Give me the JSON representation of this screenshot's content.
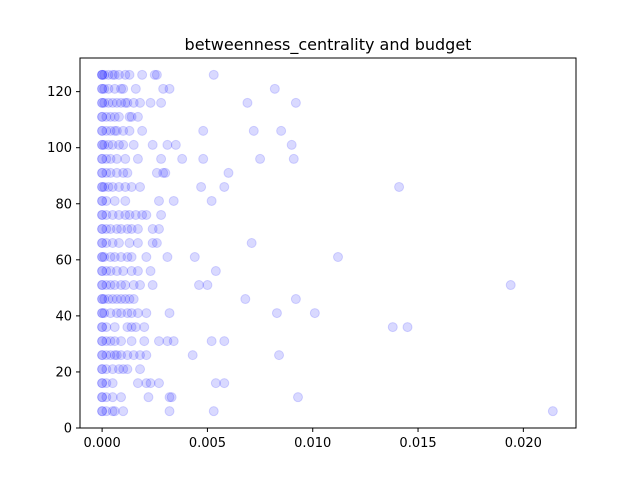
{
  "chart_data": {
    "type": "scatter",
    "title": "betweenness_centrality and budget",
    "xlabel": "",
    "ylabel": "",
    "xlim": [
      -0.00105,
      0.0225
    ],
    "ylim": [
      0,
      132
    ],
    "x_ticks": [
      0.0,
      0.005,
      0.01,
      0.015,
      0.02
    ],
    "x_tick_labels": [
      "0.000",
      "0.005",
      "0.010",
      "0.015",
      "0.020"
    ],
    "y_ticks": [
      0,
      20,
      40,
      60,
      80,
      100,
      120
    ],
    "y_tick_labels": [
      "0",
      "20",
      "40",
      "60",
      "80",
      "100",
      "120"
    ],
    "grid": false,
    "legend": false,
    "marker_color": "#0000ff",
    "marker_alpha": 0.15,
    "points": [
      [
        0.0,
        126
      ],
      [
        0.0,
        126
      ],
      [
        0.0,
        126
      ],
      [
        0.0001,
        126
      ],
      [
        0.0003,
        126
      ],
      [
        0.0005,
        126
      ],
      [
        0.0006,
        126
      ],
      [
        0.0008,
        126
      ],
      [
        0.0011,
        126
      ],
      [
        0.0013,
        126
      ],
      [
        0.0019,
        126
      ],
      [
        0.0025,
        126
      ],
      [
        0.0026,
        126
      ],
      [
        0.0053,
        126
      ],
      [
        0.0,
        121
      ],
      [
        0.0,
        121
      ],
      [
        0.0001,
        121
      ],
      [
        0.0003,
        121
      ],
      [
        0.0006,
        121
      ],
      [
        0.0009,
        121
      ],
      [
        0.001,
        121
      ],
      [
        0.0016,
        121
      ],
      [
        0.0029,
        121
      ],
      [
        0.0032,
        121
      ],
      [
        0.0082,
        121
      ],
      [
        0.0,
        116
      ],
      [
        0.0,
        116
      ],
      [
        0.0001,
        116
      ],
      [
        0.0003,
        116
      ],
      [
        0.0005,
        116
      ],
      [
        0.0007,
        116
      ],
      [
        0.0009,
        116
      ],
      [
        0.0011,
        116
      ],
      [
        0.0012,
        116
      ],
      [
        0.0015,
        116
      ],
      [
        0.0018,
        116
      ],
      [
        0.0023,
        116
      ],
      [
        0.0028,
        116
      ],
      [
        0.0069,
        116
      ],
      [
        0.0092,
        116
      ],
      [
        0.0,
        111
      ],
      [
        0.0,
        111
      ],
      [
        0.0002,
        111
      ],
      [
        0.0004,
        111
      ],
      [
        0.0006,
        111
      ],
      [
        0.0008,
        111
      ],
      [
        0.0013,
        111
      ],
      [
        0.0014,
        111
      ],
      [
        0.0017,
        111
      ],
      [
        0.0,
        106
      ],
      [
        0.0,
        106
      ],
      [
        0.0002,
        106
      ],
      [
        0.0004,
        106
      ],
      [
        0.0006,
        106
      ],
      [
        0.0007,
        106
      ],
      [
        0.001,
        106
      ],
      [
        0.0013,
        106
      ],
      [
        0.0019,
        106
      ],
      [
        0.0048,
        106
      ],
      [
        0.0072,
        106
      ],
      [
        0.0085,
        106
      ],
      [
        0.0,
        101
      ],
      [
        0.0,
        101
      ],
      [
        0.0001,
        101
      ],
      [
        0.0003,
        101
      ],
      [
        0.0005,
        101
      ],
      [
        0.0008,
        101
      ],
      [
        0.001,
        101
      ],
      [
        0.0015,
        101
      ],
      [
        0.0024,
        101
      ],
      [
        0.0031,
        101
      ],
      [
        0.0035,
        101
      ],
      [
        0.009,
        101
      ],
      [
        0.0,
        96
      ],
      [
        0.0,
        96
      ],
      [
        0.0002,
        96
      ],
      [
        0.0004,
        96
      ],
      [
        0.0007,
        96
      ],
      [
        0.0011,
        96
      ],
      [
        0.0017,
        96
      ],
      [
        0.0028,
        96
      ],
      [
        0.0038,
        96
      ],
      [
        0.0048,
        96
      ],
      [
        0.0075,
        96
      ],
      [
        0.0091,
        96
      ],
      [
        0.0,
        91
      ],
      [
        0.0,
        91
      ],
      [
        0.0002,
        91
      ],
      [
        0.0004,
        91
      ],
      [
        0.0007,
        91
      ],
      [
        0.001,
        91
      ],
      [
        0.0012,
        91
      ],
      [
        0.0026,
        91
      ],
      [
        0.0029,
        91
      ],
      [
        0.003,
        91
      ],
      [
        0.006,
        91
      ],
      [
        0.0,
        86
      ],
      [
        0.0,
        86
      ],
      [
        0.0001,
        86
      ],
      [
        0.0003,
        86
      ],
      [
        0.0005,
        86
      ],
      [
        0.0008,
        86
      ],
      [
        0.0011,
        86
      ],
      [
        0.0014,
        86
      ],
      [
        0.0018,
        86
      ],
      [
        0.0047,
        86
      ],
      [
        0.0058,
        86
      ],
      [
        0.0141,
        86
      ],
      [
        0.0,
        81
      ],
      [
        0.0,
        81
      ],
      [
        0.0002,
        81
      ],
      [
        0.0006,
        81
      ],
      [
        0.0011,
        81
      ],
      [
        0.0027,
        81
      ],
      [
        0.0034,
        81
      ],
      [
        0.0052,
        81
      ],
      [
        0.0,
        76
      ],
      [
        0.0,
        76
      ],
      [
        0.0002,
        76
      ],
      [
        0.0005,
        76
      ],
      [
        0.0008,
        76
      ],
      [
        0.0011,
        76
      ],
      [
        0.0013,
        76
      ],
      [
        0.0016,
        76
      ],
      [
        0.0019,
        76
      ],
      [
        0.0021,
        76
      ],
      [
        0.0028,
        76
      ],
      [
        0.0,
        71
      ],
      [
        0.0,
        71
      ],
      [
        0.0002,
        71
      ],
      [
        0.0004,
        71
      ],
      [
        0.0007,
        71
      ],
      [
        0.0009,
        71
      ],
      [
        0.0012,
        71
      ],
      [
        0.0014,
        71
      ],
      [
        0.0017,
        71
      ],
      [
        0.0024,
        71
      ],
      [
        0.0027,
        71
      ],
      [
        0.0,
        66
      ],
      [
        0.0,
        66
      ],
      [
        0.0002,
        66
      ],
      [
        0.0005,
        66
      ],
      [
        0.0008,
        66
      ],
      [
        0.0013,
        66
      ],
      [
        0.0017,
        66
      ],
      [
        0.0024,
        66
      ],
      [
        0.0026,
        66
      ],
      [
        0.0071,
        66
      ],
      [
        0.0,
        61
      ],
      [
        0.0,
        61
      ],
      [
        0.0001,
        61
      ],
      [
        0.0004,
        61
      ],
      [
        0.0006,
        61
      ],
      [
        0.0009,
        61
      ],
      [
        0.0012,
        61
      ],
      [
        0.0014,
        61
      ],
      [
        0.0021,
        61
      ],
      [
        0.0031,
        61
      ],
      [
        0.0044,
        61
      ],
      [
        0.0112,
        61
      ],
      [
        0.0,
        56
      ],
      [
        0.0,
        56
      ],
      [
        0.0002,
        56
      ],
      [
        0.0004,
        56
      ],
      [
        0.0007,
        56
      ],
      [
        0.001,
        56
      ],
      [
        0.0014,
        56
      ],
      [
        0.0017,
        56
      ],
      [
        0.0023,
        56
      ],
      [
        0.0054,
        56
      ],
      [
        0.0,
        51
      ],
      [
        0.0,
        51
      ],
      [
        0.0002,
        51
      ],
      [
        0.0004,
        51
      ],
      [
        0.0006,
        51
      ],
      [
        0.0009,
        51
      ],
      [
        0.0011,
        51
      ],
      [
        0.0015,
        51
      ],
      [
        0.0018,
        51
      ],
      [
        0.0024,
        51
      ],
      [
        0.0046,
        51
      ],
      [
        0.005,
        51
      ],
      [
        0.0194,
        51
      ],
      [
        0.0,
        46
      ],
      [
        0.0,
        46
      ],
      [
        0.0001,
        46
      ],
      [
        0.0003,
        46
      ],
      [
        0.0005,
        46
      ],
      [
        0.0007,
        46
      ],
      [
        0.0009,
        46
      ],
      [
        0.0011,
        46
      ],
      [
        0.0013,
        46
      ],
      [
        0.0015,
        46
      ],
      [
        0.0068,
        46
      ],
      [
        0.0092,
        46
      ],
      [
        0.0,
        41
      ],
      [
        0.0,
        41
      ],
      [
        0.0001,
        41
      ],
      [
        0.0004,
        41
      ],
      [
        0.0007,
        41
      ],
      [
        0.0009,
        41
      ],
      [
        0.0012,
        41
      ],
      [
        0.0014,
        41
      ],
      [
        0.0017,
        41
      ],
      [
        0.0021,
        41
      ],
      [
        0.0032,
        41
      ],
      [
        0.0083,
        41
      ],
      [
        0.0101,
        41
      ],
      [
        0.0,
        36
      ],
      [
        0.0,
        36
      ],
      [
        0.0002,
        36
      ],
      [
        0.0006,
        36
      ],
      [
        0.0012,
        36
      ],
      [
        0.0014,
        36
      ],
      [
        0.0016,
        36
      ],
      [
        0.002,
        36
      ],
      [
        0.0138,
        36
      ],
      [
        0.0145,
        36
      ],
      [
        0.0,
        31
      ],
      [
        0.0,
        31
      ],
      [
        0.0002,
        31
      ],
      [
        0.0004,
        31
      ],
      [
        0.0006,
        31
      ],
      [
        0.0009,
        31
      ],
      [
        0.0014,
        31
      ],
      [
        0.002,
        31
      ],
      [
        0.0027,
        31
      ],
      [
        0.0031,
        31
      ],
      [
        0.0034,
        31
      ],
      [
        0.0052,
        31
      ],
      [
        0.0058,
        31
      ],
      [
        0.0,
        26
      ],
      [
        0.0,
        26
      ],
      [
        0.0002,
        26
      ],
      [
        0.0004,
        26
      ],
      [
        0.0006,
        26
      ],
      [
        0.0007,
        26
      ],
      [
        0.0009,
        26
      ],
      [
        0.0012,
        26
      ],
      [
        0.0015,
        26
      ],
      [
        0.0018,
        26
      ],
      [
        0.0021,
        26
      ],
      [
        0.0043,
        26
      ],
      [
        0.0084,
        26
      ],
      [
        0.0,
        21
      ],
      [
        0.0,
        21
      ],
      [
        0.0002,
        21
      ],
      [
        0.0005,
        21
      ],
      [
        0.0008,
        21
      ],
      [
        0.001,
        21
      ],
      [
        0.0012,
        21
      ],
      [
        0.0018,
        21
      ],
      [
        0.0,
        16
      ],
      [
        0.0,
        16
      ],
      [
        0.0002,
        16
      ],
      [
        0.0005,
        16
      ],
      [
        0.0017,
        16
      ],
      [
        0.0021,
        16
      ],
      [
        0.0023,
        16
      ],
      [
        0.0027,
        16
      ],
      [
        0.0054,
        16
      ],
      [
        0.0058,
        16
      ],
      [
        0.0,
        11
      ],
      [
        0.0,
        11
      ],
      [
        0.0002,
        11
      ],
      [
        0.0005,
        11
      ],
      [
        0.0009,
        11
      ],
      [
        0.0022,
        11
      ],
      [
        0.0032,
        11
      ],
      [
        0.0033,
        11
      ],
      [
        0.0093,
        11
      ],
      [
        0.0,
        6
      ],
      [
        0.0,
        6
      ],
      [
        0.0002,
        6
      ],
      [
        0.0005,
        6
      ],
      [
        0.0006,
        6
      ],
      [
        0.001,
        6
      ],
      [
        0.0032,
        6
      ],
      [
        0.0053,
        6
      ],
      [
        0.0214,
        6
      ]
    ]
  }
}
